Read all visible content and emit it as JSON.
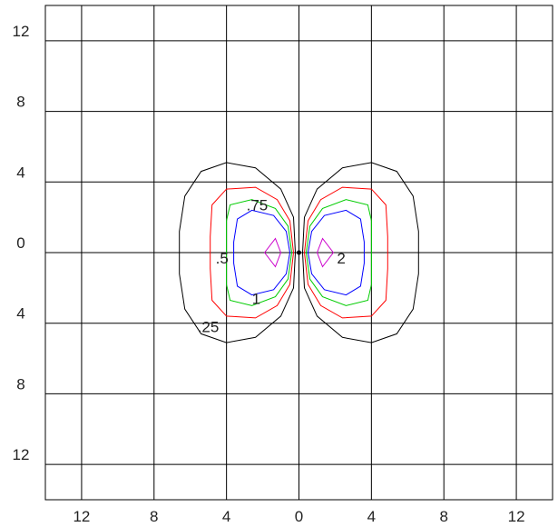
{
  "chart_data": {
    "type": "contour",
    "title": "",
    "xlabel": "",
    "ylabel": "",
    "xlim": [
      -14,
      14
    ],
    "ylim": [
      -14,
      14
    ],
    "grid": true,
    "x_ticks": [
      {
        "value": -12,
        "label": "12"
      },
      {
        "value": -8,
        "label": "8"
      },
      {
        "value": -4,
        "label": "4"
      },
      {
        "value": 0,
        "label": "0"
      },
      {
        "value": 4,
        "label": "4"
      },
      {
        "value": 8,
        "label": "8"
      },
      {
        "value": 12,
        "label": "12"
      }
    ],
    "y_ticks": [
      {
        "value": 12,
        "label": "12"
      },
      {
        "value": 8,
        "label": "8"
      },
      {
        "value": 4,
        "label": "4"
      },
      {
        "value": 0,
        "label": "0"
      },
      {
        "value": -4,
        "label": "4"
      },
      {
        "value": -8,
        "label": "8"
      },
      {
        "value": -12,
        "label": "12"
      }
    ],
    "levels": [
      {
        "level": 0.25,
        "color": "#000000",
        "label": ".25",
        "label_at": [
          -5.6,
          -4.2
        ],
        "right": [
          [
            0.2,
            0
          ],
          [
            0.3,
            2.0
          ],
          [
            1.0,
            3.6
          ],
          [
            2.4,
            4.8
          ],
          [
            4.0,
            5.1
          ],
          [
            5.4,
            4.6
          ],
          [
            6.3,
            3.2
          ],
          [
            6.6,
            1.2
          ],
          [
            6.6,
            -1.2
          ],
          [
            6.3,
            -3.2
          ],
          [
            5.4,
            -4.6
          ],
          [
            4.0,
            -5.1
          ],
          [
            2.4,
            -4.8
          ],
          [
            1.0,
            -3.6
          ],
          [
            0.3,
            -2.0
          ],
          [
            0.2,
            0
          ]
        ]
      },
      {
        "level": 0.5,
        "color": "#ff0000",
        "label": ".5",
        "label_at": [
          -4.6,
          -0.3
        ],
        "right": [
          [
            0.3,
            0
          ],
          [
            0.5,
            1.8
          ],
          [
            1.2,
            3.0
          ],
          [
            2.4,
            3.7
          ],
          [
            4.0,
            3.6
          ],
          [
            4.8,
            2.7
          ],
          [
            4.9,
            0.9
          ],
          [
            4.9,
            -0.9
          ],
          [
            4.8,
            -2.7
          ],
          [
            4.0,
            -3.6
          ],
          [
            2.4,
            -3.7
          ],
          [
            1.2,
            -3.0
          ],
          [
            0.5,
            -1.8
          ],
          [
            0.3,
            0
          ]
        ]
      },
      {
        "level": 0.75,
        "color": "#00cc00",
        "label": ".75",
        "label_at": [
          -2.9,
          2.7
        ],
        "right": [
          [
            0.4,
            0
          ],
          [
            0.6,
            1.5
          ],
          [
            1.3,
            2.5
          ],
          [
            2.6,
            3.0
          ],
          [
            3.8,
            2.7
          ],
          [
            4.0,
            1.8
          ],
          [
            4.0,
            0.6
          ],
          [
            4.0,
            -0.6
          ],
          [
            4.0,
            -1.8
          ],
          [
            3.8,
            -2.7
          ],
          [
            2.6,
            -3.0
          ],
          [
            1.3,
            -2.5
          ],
          [
            0.6,
            -1.5
          ],
          [
            0.4,
            0
          ]
        ]
      },
      {
        "level": 1,
        "color": "#0000ff",
        "label": "1",
        "label_at": [
          -2.6,
          -2.6
        ],
        "right": [
          [
            0.5,
            0
          ],
          [
            0.7,
            1.2
          ],
          [
            1.4,
            2.1
          ],
          [
            2.6,
            2.4
          ],
          [
            3.4,
            1.9
          ],
          [
            3.6,
            0.6
          ],
          [
            3.6,
            -0.6
          ],
          [
            3.4,
            -1.9
          ],
          [
            2.6,
            -2.4
          ],
          [
            1.4,
            -2.1
          ],
          [
            0.7,
            -1.2
          ],
          [
            0.5,
            0
          ]
        ]
      },
      {
        "level": 2,
        "color": "#cc00cc",
        "label": "2",
        "label_at": [
          2.1,
          -0.3
        ],
        "right": [
          [
            1.0,
            0
          ],
          [
            1.3,
            0.8
          ],
          [
            1.9,
            0
          ],
          [
            1.3,
            -0.8
          ],
          [
            1.0,
            0
          ]
        ]
      }
    ]
  }
}
